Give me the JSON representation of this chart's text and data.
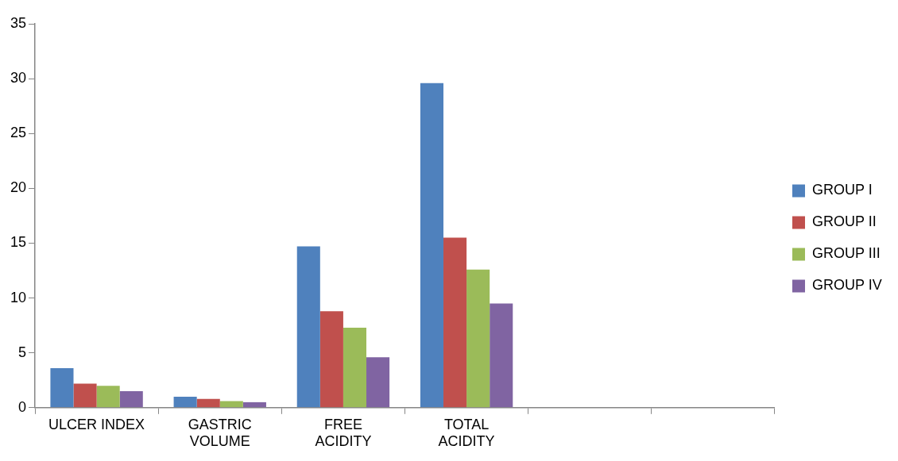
{
  "chart_data": {
    "type": "bar",
    "categories": [
      "ULCER INDEX",
      "GASTRIC\nVOLUME",
      "FREE\nACIDITY",
      "TOTAL\nACIDITY",
      null,
      null
    ],
    "series": [
      {
        "name": "GROUP I",
        "color": "#4f81bd",
        "values": [
          3.6,
          1.0,
          14.7,
          29.6,
          null,
          null
        ]
      },
      {
        "name": "GROUP II",
        "color": "#c0504d",
        "values": [
          2.2,
          0.8,
          8.8,
          15.5,
          null,
          null
        ]
      },
      {
        "name": "GROUP III",
        "color": "#9bbb59",
        "values": [
          2.0,
          0.6,
          7.3,
          12.6,
          null,
          null
        ]
      },
      {
        "name": "GROUP IV",
        "color": "#8064a2",
        "values": [
          1.5,
          0.5,
          4.6,
          9.5,
          null,
          null
        ]
      }
    ],
    "ylim": [
      0,
      35
    ],
    "yticks": [
      0,
      5,
      10,
      15,
      20,
      25,
      30,
      35
    ],
    "grid": false,
    "legend": "right"
  }
}
